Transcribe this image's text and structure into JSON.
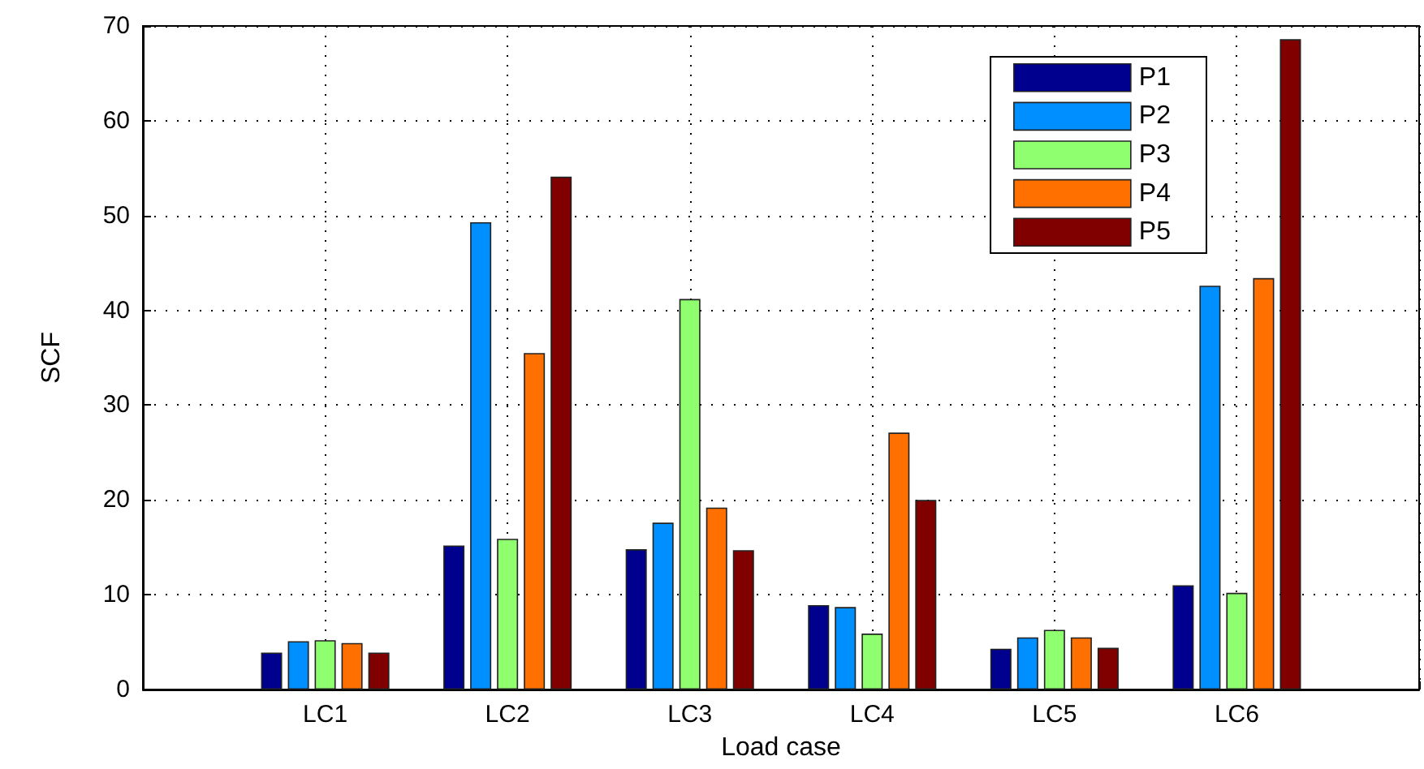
{
  "chart_data": {
    "type": "bar",
    "xlabel": "Load case",
    "ylabel": "SCF",
    "categories": [
      "LC1",
      "LC2",
      "LC3",
      "LC4",
      "LC5",
      "LC6"
    ],
    "series": [
      {
        "name": "P1",
        "color": "#00008f",
        "values": [
          3.9,
          15.2,
          14.8,
          8.9,
          4.3,
          11.0
        ]
      },
      {
        "name": "P2",
        "color": "#008fff",
        "values": [
          5.1,
          49.3,
          17.6,
          8.7,
          5.5,
          42.6
        ]
      },
      {
        "name": "P3",
        "color": "#8fff6f",
        "values": [
          5.2,
          15.9,
          41.2,
          5.9,
          6.3,
          10.2
        ]
      },
      {
        "name": "P4",
        "color": "#ff7000",
        "values": [
          4.9,
          35.5,
          19.2,
          27.1,
          5.5,
          43.4
        ]
      },
      {
        "name": "P5",
        "color": "#800000",
        "values": [
          3.9,
          54.1,
          14.7,
          20.0,
          4.4,
          68.6
        ]
      }
    ],
    "ylim": [
      0,
      70
    ],
    "yticks": [
      0,
      10,
      20,
      30,
      40,
      50,
      60,
      70
    ],
    "grid": true,
    "legend": "top right"
  }
}
